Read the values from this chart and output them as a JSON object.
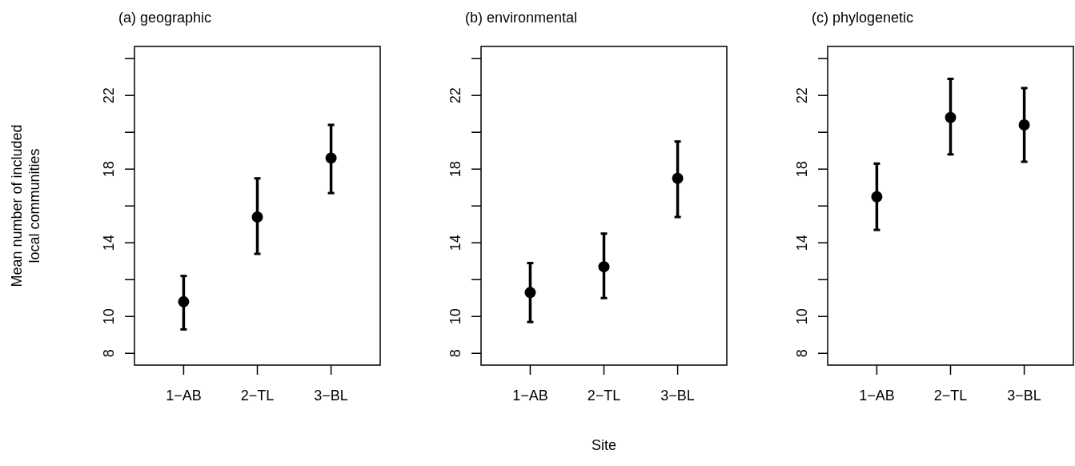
{
  "chart_data": [
    {
      "type": "scatter",
      "title": "(a) geographic",
      "ylabel": "Mean number of included\nlocal communities",
      "categories": [
        "1−AB",
        "2−TL",
        "3−BL"
      ],
      "series": [
        {
          "color": "#000000",
          "values": [
            10.8,
            15.4,
            18.6
          ],
          "errors": [
            [
              9.3,
              12.2
            ],
            [
              13.4,
              17.5
            ],
            [
              16.7,
              20.4
            ]
          ]
        }
      ],
      "ylim": [
        7.36,
        24.66
      ],
      "yticks": [
        8,
        10,
        {
          "value": 12,
          "label": null
        },
        14,
        {
          "value": 16,
          "label": null
        },
        18,
        {
          "value": 20,
          "label": null
        },
        22,
        {
          "value": 24,
          "label": null
        }
      ],
      "marker": "circle"
    },
    {
      "type": "scatter",
      "title": "(b) environmental",
      "xlabel": "Site",
      "categories": [
        "1−AB",
        "2−TL",
        "3−BL"
      ],
      "series": [
        {
          "color": "#000000",
          "values": [
            11.3,
            12.7,
            17.5
          ],
          "errors": [
            [
              9.7,
              12.9
            ],
            [
              11.0,
              14.5
            ],
            [
              15.4,
              19.5
            ]
          ]
        }
      ],
      "ylim": [
        7.36,
        24.66
      ],
      "yticks": [
        8,
        10,
        {
          "value": 12,
          "label": null
        },
        14,
        {
          "value": 16,
          "label": null
        },
        18,
        {
          "value": 20,
          "label": null
        },
        22,
        {
          "value": 24,
          "label": null
        }
      ],
      "marker": "circle"
    },
    {
      "type": "scatter",
      "title": "(c) phylogenetic",
      "categories": [
        "1−AB",
        "2−TL",
        "3−BL"
      ],
      "series": [
        {
          "color": "#000000",
          "values": [
            16.5,
            20.8,
            20.4
          ],
          "errors": [
            [
              14.7,
              18.3
            ],
            [
              18.8,
              22.9
            ],
            [
              18.4,
              22.4
            ]
          ]
        }
      ],
      "ylim": [
        7.36,
        24.66
      ],
      "yticks": [
        8,
        10,
        {
          "value": 12,
          "label": null
        },
        14,
        {
          "value": 16,
          "label": null
        },
        18,
        {
          "value": 20,
          "label": null
        },
        22,
        {
          "value": 24,
          "label": null
        }
      ],
      "marker": "circle"
    }
  ]
}
